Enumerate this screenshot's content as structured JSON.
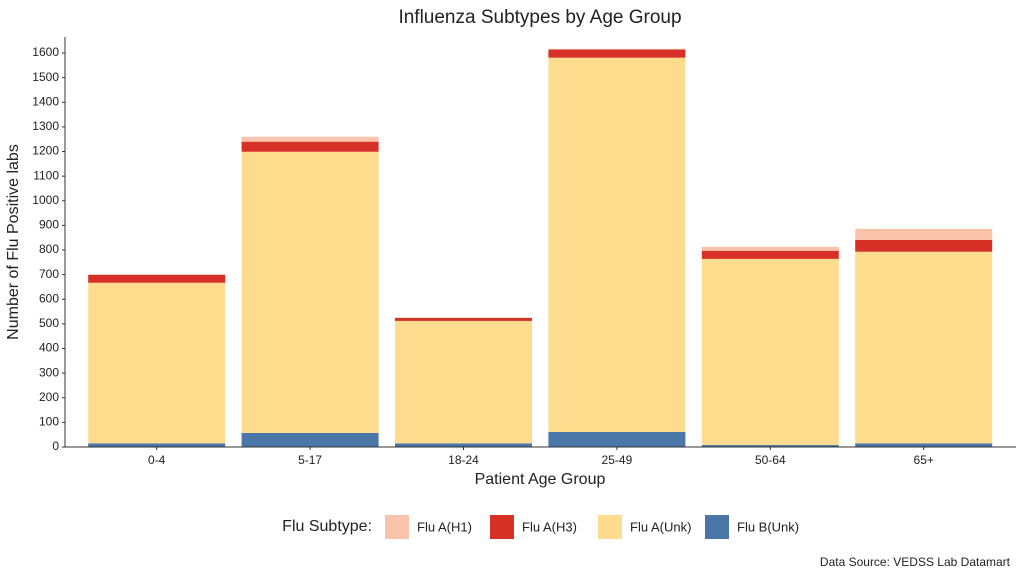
{
  "chart_data": {
    "type": "stacked_bar",
    "title": "Influenza Subtypes by Age Group",
    "x_label": "Patient Age Group",
    "y_label": "Number of Flu Positive labs",
    "legend_title": "Flu Subtype:",
    "caption": "Data Source: VEDSS Lab Datamart",
    "categories": [
      "0-4",
      "5-17",
      "18-24",
      "25-49",
      "50-64",
      "65+"
    ],
    "series": [
      {
        "name": "Flu A(H1)",
        "color": "#f9c4ab",
        "values": [
          3,
          20,
          2,
          3,
          16,
          45
        ]
      },
      {
        "name": "Flu A(H3)",
        "color": "#d73027",
        "values": [
          32,
          41,
          12,
          33,
          33,
          48
        ]
      },
      {
        "name": "Flu A(Unk)",
        "color": "#fddc8e",
        "values": [
          652,
          1142,
          497,
          1520,
          756,
          778
        ]
      },
      {
        "name": "Flu B(Unk)",
        "color": "#4a76a8",
        "values": [
          15,
          57,
          15,
          61,
          8,
          15
        ]
      }
    ],
    "ylim": [
      0,
      1665
    ],
    "yticks": [
      0,
      100,
      200,
      300,
      400,
      500,
      600,
      700,
      800,
      900,
      1000,
      1100,
      1200,
      1300,
      1400,
      1500,
      1600
    ],
    "legend_position": "bottom"
  }
}
